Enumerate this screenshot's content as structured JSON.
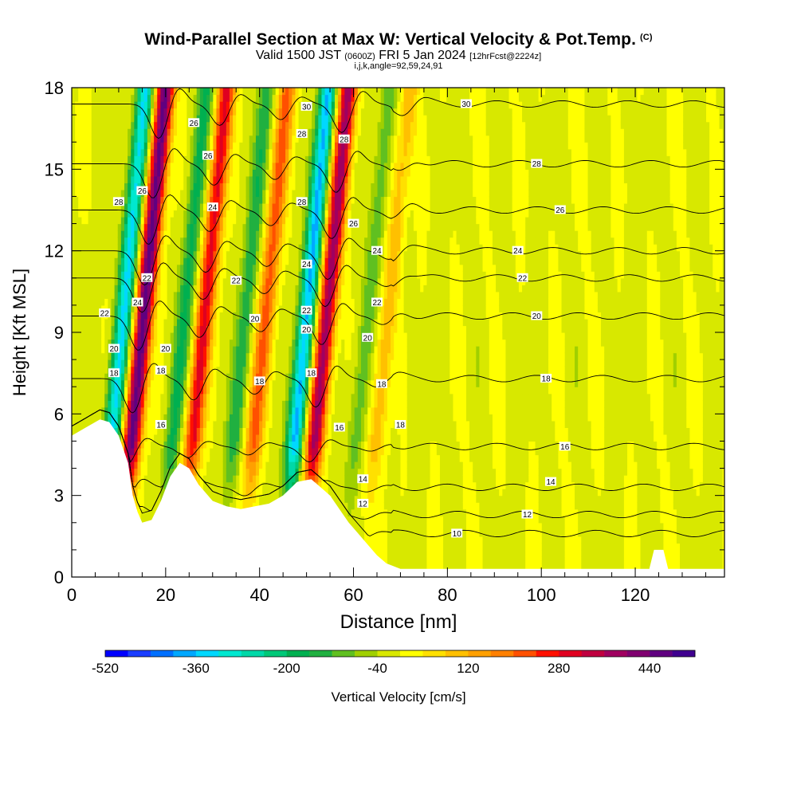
{
  "title": "Wind-Parallel Section at Max W: Vertical Velocity & Pot.Temp.",
  "title_mark": "(C)",
  "subtitle": {
    "valid": "Valid 1500 JST",
    "zulu": "(0600Z)",
    "date": "FRI 5 Jan 2024",
    "fcst": "[12hrFcst@2224z]"
  },
  "ijk": "i,j,k,angle=92,59,24,91",
  "chart_data": {
    "type": "heatmap",
    "title": "Wind-Parallel Section at Max W: Vertical Velocity & Pot.Temp.",
    "xlabel": "Distance [nm]",
    "ylabel": "Height [Kft MSL]",
    "xlim": [
      0,
      139
    ],
    "ylim": [
      0,
      18
    ],
    "x_ticks": [
      0,
      20,
      40,
      60,
      80,
      100,
      120
    ],
    "y_ticks": [
      0,
      3,
      6,
      9,
      12,
      15,
      18
    ],
    "colorbar": {
      "label": "Vertical Velocity [cm/s]",
      "min": -520,
      "max": 520,
      "step": 40,
      "tick_values": [
        -520,
        -360,
        -200,
        -40,
        120,
        280,
        440
      ],
      "colors": [
        "#0000ff",
        "#1a3dff",
        "#0070ff",
        "#00a8ff",
        "#00d8ff",
        "#00e8d0",
        "#00d8a8",
        "#00c878",
        "#00b050",
        "#20b040",
        "#60c020",
        "#a0d000",
        "#d8e800",
        "#ffff00",
        "#ffe000",
        "#ffc000",
        "#ffa000",
        "#ff8000",
        "#ff5000",
        "#ff1000",
        "#e00020",
        "#c00040",
        "#a00060",
        "#800070",
        "#600080",
        "#400090"
      ]
    },
    "wave_columns": {
      "center_x": [
        15,
        28,
        41,
        54,
        67
      ],
      "up_amplitude_cm_s": [
        480,
        300,
        220,
        400,
        120
      ],
      "down_amplitude_cm_s": [
        -330,
        -160,
        -140,
        -370,
        -100
      ]
    },
    "theta_contours": [
      {
        "level": 10,
        "y_far": 1.6
      },
      {
        "level": 12,
        "y_far": 2.3
      },
      {
        "level": 14,
        "y_far": 3.3
      },
      {
        "level": 16,
        "y_far": 4.8
      },
      {
        "level": 18,
        "y_far": 7.3
      },
      {
        "level": 20,
        "y_far": 9.6
      },
      {
        "level": 22,
        "y_far": 11.0
      },
      {
        "level": 24,
        "y_far": 12.0
      },
      {
        "level": 26,
        "y_far": 13.5
      },
      {
        "level": 28,
        "y_far": 15.2
      },
      {
        "level": 30,
        "y_far": 17.4
      }
    ],
    "terrain_profile": [
      [
        0,
        5.2
      ],
      [
        3,
        5.5
      ],
      [
        6,
        5.8
      ],
      [
        8,
        5.7
      ],
      [
        10,
        5.2
      ],
      [
        12,
        4.2
      ],
      [
        13,
        3.0
      ],
      [
        14,
        2.4
      ],
      [
        15,
        2.0
      ],
      [
        17,
        2.1
      ],
      [
        19,
        2.8
      ],
      [
        21,
        3.7
      ],
      [
        23,
        4.2
      ],
      [
        25,
        4.0
      ],
      [
        27,
        3.4
      ],
      [
        30,
        2.8
      ],
      [
        33,
        2.6
      ],
      [
        36,
        2.5
      ],
      [
        39,
        2.6
      ],
      [
        42,
        2.7
      ],
      [
        45,
        3.0
      ],
      [
        48,
        3.5
      ],
      [
        51,
        3.6
      ],
      [
        53,
        3.3
      ],
      [
        55,
        3.0
      ],
      [
        57,
        2.5
      ],
      [
        59,
        2.0
      ],
      [
        61,
        1.6
      ],
      [
        63,
        1.2
      ],
      [
        65,
        0.8
      ],
      [
        67,
        0.5
      ],
      [
        70,
        0.3
      ],
      [
        85,
        0.3
      ],
      [
        100,
        0.3
      ],
      [
        123,
        0.3
      ],
      [
        124,
        1.0
      ],
      [
        126,
        1.0
      ],
      [
        127,
        0.3
      ],
      [
        139,
        0.3
      ]
    ],
    "contour_labels": [
      {
        "text": "30",
        "x": 84,
        "y": 17.4
      },
      {
        "text": "28",
        "x": 99,
        "y": 15.2
      },
      {
        "text": "26",
        "x": 104,
        "y": 13.5
      },
      {
        "text": "24",
        "x": 95,
        "y": 12.0
      },
      {
        "text": "22",
        "x": 96,
        "y": 11.0
      },
      {
        "text": "20",
        "x": 99,
        "y": 9.6
      },
      {
        "text": "18",
        "x": 101,
        "y": 7.3
      },
      {
        "text": "16",
        "x": 105,
        "y": 4.8
      },
      {
        "text": "14",
        "x": 102,
        "y": 3.5
      },
      {
        "text": "12",
        "x": 97,
        "y": 2.3
      },
      {
        "text": "10",
        "x": 82,
        "y": 1.6
      },
      {
        "text": "30",
        "x": 50,
        "y": 17.3
      },
      {
        "text": "28",
        "x": 49,
        "y": 16.3
      },
      {
        "text": "28",
        "x": 58,
        "y": 16.1
      },
      {
        "text": "28",
        "x": 49,
        "y": 13.8
      },
      {
        "text": "26",
        "x": 60,
        "y": 13.0
      },
      {
        "text": "24",
        "x": 50,
        "y": 11.5
      },
      {
        "text": "24",
        "x": 65,
        "y": 12.0
      },
      {
        "text": "22",
        "x": 50,
        "y": 9.8
      },
      {
        "text": "22",
        "x": 65,
        "y": 10.1
      },
      {
        "text": "20",
        "x": 50,
        "y": 9.1
      },
      {
        "text": "20",
        "x": 63,
        "y": 8.8
      },
      {
        "text": "18",
        "x": 51,
        "y": 7.5
      },
      {
        "text": "18",
        "x": 66,
        "y": 7.1
      },
      {
        "text": "16",
        "x": 57,
        "y": 5.5
      },
      {
        "text": "18",
        "x": 70,
        "y": 5.6
      },
      {
        "text": "14",
        "x": 62,
        "y": 3.6
      },
      {
        "text": "12",
        "x": 62,
        "y": 2.7
      },
      {
        "text": "26",
        "x": 26,
        "y": 16.7
      },
      {
        "text": "26",
        "x": 29,
        "y": 15.5
      },
      {
        "text": "24",
        "x": 30,
        "y": 13.6
      },
      {
        "text": "22",
        "x": 35,
        "y": 10.9
      },
      {
        "text": "20",
        "x": 39,
        "y": 9.5
      },
      {
        "text": "18",
        "x": 40,
        "y": 7.2
      },
      {
        "text": "28",
        "x": 10,
        "y": 13.8
      },
      {
        "text": "26",
        "x": 15,
        "y": 14.2
      },
      {
        "text": "22",
        "x": 16,
        "y": 11.0
      },
      {
        "text": "24",
        "x": 14,
        "y": 10.1
      },
      {
        "text": "22",
        "x": 7,
        "y": 9.7
      },
      {
        "text": "20",
        "x": 9,
        "y": 8.4
      },
      {
        "text": "20",
        "x": 20,
        "y": 8.4
      },
      {
        "text": "18",
        "x": 9,
        "y": 7.5
      },
      {
        "text": "18",
        "x": 19,
        "y": 7.6
      },
      {
        "text": "16",
        "x": 19,
        "y": 5.6
      }
    ]
  }
}
